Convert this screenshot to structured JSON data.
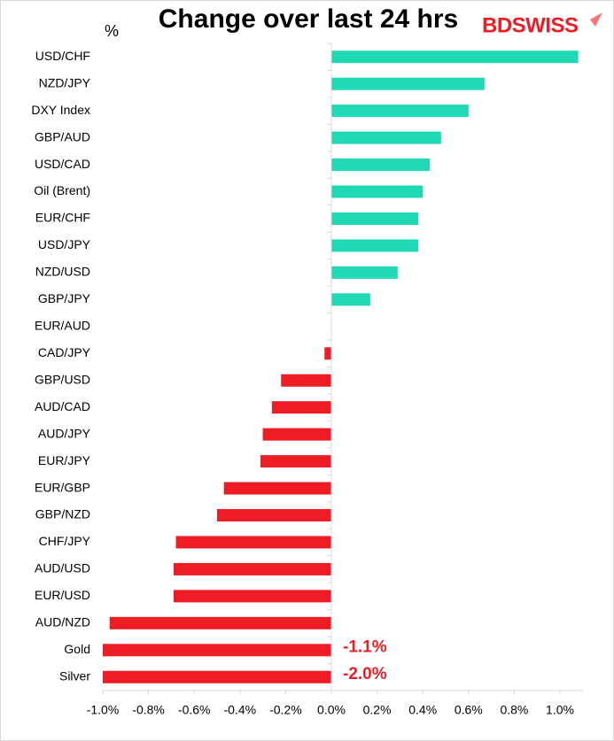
{
  "chart_data": {
    "type": "bar",
    "orientation": "horizontal",
    "title": "Change over last 24 hrs",
    "logo": "BDSWISS",
    "unit": "%",
    "categories": [
      "USD/CHF",
      "NZD/JPY",
      "DXY Index",
      "GBP/AUD",
      "USD/CAD",
      "Oil (Brent)",
      "EUR/CHF",
      "USD/JPY",
      "NZD/USD",
      "GBP/JPY",
      "EUR/AUD",
      "CAD/JPY",
      "GBP/USD",
      "AUD/CAD",
      "AUD/JPY",
      "EUR/JPY",
      "EUR/GBP",
      "GBP/NZD",
      "CHF/JPY",
      "AUD/USD",
      "EUR/USD",
      "AUD/NZD",
      "Gold",
      "Silver"
    ],
    "values": [
      1.08,
      0.67,
      0.6,
      0.48,
      0.43,
      0.4,
      0.38,
      0.38,
      0.29,
      0.17,
      0,
      -0.03,
      -0.22,
      -0.26,
      -0.3,
      -0.31,
      -0.47,
      -0.5,
      -0.68,
      -0.69,
      -0.69,
      -0.97,
      -1.1,
      -2.0
    ],
    "value_labels": [
      null,
      null,
      null,
      null,
      null,
      null,
      null,
      null,
      null,
      null,
      null,
      null,
      null,
      null,
      null,
      null,
      null,
      null,
      null,
      null,
      null,
      null,
      "-1.1%",
      "-2.0%"
    ],
    "colors": {
      "positive": "#1fd8b4",
      "negative": "#ee1c25"
    },
    "xlim": [
      -1,
      1.1
    ],
    "xticks": [
      {
        "value": -1,
        "label": "-1.0%"
      },
      {
        "value": -0.8,
        "label": "-0.8%"
      },
      {
        "value": -0.6,
        "label": "-0.6%"
      },
      {
        "value": -0.4,
        "label": "-0.4%"
      },
      {
        "value": -0.2,
        "label": "-0.2%"
      },
      {
        "value": 0,
        "label": "0.0%"
      },
      {
        "value": 0.2,
        "label": "0.2%"
      },
      {
        "value": 0.4,
        "label": "0.4%"
      },
      {
        "value": 0.6,
        "label": "0.6%"
      },
      {
        "value": 0.8,
        "label": "0.8%"
      },
      {
        "value": 1,
        "label": "1.0%"
      }
    ],
    "grid": false
  }
}
